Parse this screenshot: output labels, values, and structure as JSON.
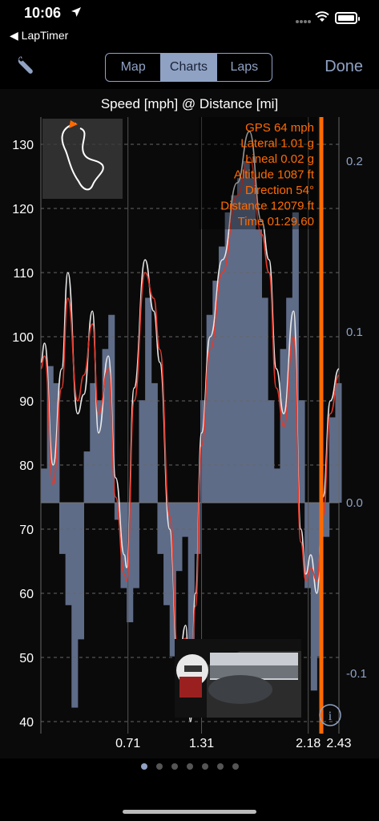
{
  "status_bar": {
    "time": "10:06"
  },
  "nav": {
    "back_label": "◀ LapTimer",
    "tabs": [
      {
        "label": "Map",
        "active": false
      },
      {
        "label": "Charts",
        "active": true
      },
      {
        "label": "Laps",
        "active": false
      }
    ],
    "done_label": "Done"
  },
  "chart": {
    "title": "Speed [mph] @ Distance [mi]",
    "info_lines": [
      "GPS 64 mph",
      "Lateral 1.01 g",
      "Lineal 0.02 g",
      "Altitude 1087 ft",
      "Direction 54°",
      "Distance 12079 ft",
      "Time 01:29.60"
    ]
  },
  "colors": {
    "accent": "#8fa2c4",
    "orange": "#ff6a00",
    "red_line": "#e5392b",
    "white_line": "#e8e8e8",
    "bars": "#5f6c88"
  },
  "chart_data": {
    "type": "line",
    "title": "Speed [mph] @ Distance [mi]",
    "x_ticks": [
      "0.71",
      "1.31",
      "2.18",
      "2.43"
    ],
    "y_ticks_left": [
      40,
      50,
      60,
      70,
      80,
      90,
      100,
      110,
      120,
      130
    ],
    "y_ticks_right": [
      "-0.1",
      "0.0",
      "0.1",
      "0.2"
    ],
    "ylim_left": [
      40,
      130
    ],
    "ylim_right": [
      -0.13,
      0.2
    ],
    "series": [
      {
        "color": "#e8e8e8",
        "x": [
          0.0,
          0.03,
          0.1,
          0.17,
          0.22,
          0.3,
          0.35,
          0.42,
          0.47,
          0.55,
          0.61,
          0.68,
          0.7,
          0.76,
          0.85,
          0.92,
          0.97,
          1.05,
          1.12,
          1.18,
          1.22,
          1.26,
          1.31,
          1.38,
          1.48,
          1.6,
          1.7,
          1.8,
          1.86,
          1.92,
          1.98,
          2.06,
          2.12,
          2.16,
          2.2,
          2.25,
          2.3,
          2.36,
          2.43
        ],
        "y": [
          96,
          99,
          80,
          95,
          110,
          88,
          91,
          104,
          85,
          97,
          78,
          66,
          64,
          92,
          112,
          104,
          96,
          70,
          48,
          55,
          40,
          60,
          85,
          100,
          112,
          124,
          132,
          118,
          112,
          95,
          88,
          104,
          70,
          63,
          66,
          60,
          75,
          90,
          95
        ]
      },
      {
        "color": "#e5392b",
        "x": [
          0.0,
          0.03,
          0.1,
          0.17,
          0.22,
          0.3,
          0.35,
          0.42,
          0.47,
          0.55,
          0.61,
          0.68,
          0.7,
          0.76,
          0.85,
          0.92,
          0.97,
          1.05,
          1.12,
          1.18,
          1.22,
          1.26,
          1.31,
          1.38,
          1.48,
          1.6,
          1.7,
          1.8,
          1.86,
          1.92,
          1.98,
          2.06,
          2.12,
          2.16,
          2.2,
          2.25,
          2.3,
          2.36,
          2.43
        ],
        "y": [
          95,
          97,
          77,
          92,
          106,
          90,
          94,
          102,
          88,
          95,
          75,
          63,
          62,
          90,
          110,
          106,
          98,
          72,
          50,
          53,
          42,
          58,
          83,
          98,
          110,
          122,
          128,
          116,
          110,
          92,
          86,
          100,
          68,
          62,
          64,
          62,
          72,
          88,
          94
        ]
      }
    ],
    "bars": {
      "x": [
        0.0,
        0.05,
        0.1,
        0.15,
        0.2,
        0.25,
        0.3,
        0.35,
        0.4,
        0.45,
        0.5,
        0.55,
        0.6,
        0.65,
        0.7,
        0.75,
        0.8,
        0.85,
        0.9,
        0.95,
        1.0,
        1.05,
        1.1,
        1.15,
        1.2,
        1.25,
        1.3,
        1.35,
        1.4,
        1.45,
        1.5,
        1.55,
        1.6,
        1.65,
        1.7,
        1.75,
        1.8,
        1.85,
        1.9,
        1.95,
        2.0,
        2.05,
        2.1,
        2.15,
        2.2,
        2.25,
        2.3,
        2.35,
        2.4
      ],
      "y": [
        0.02,
        0.08,
        0.07,
        -0.03,
        -0.06,
        -0.12,
        -0.08,
        0.03,
        0.07,
        0.06,
        0.09,
        0.11,
        -0.01,
        -0.05,
        -0.07,
        -0.05,
        0.06,
        0.12,
        0.07,
        -0.03,
        -0.06,
        -0.09,
        -0.04,
        -0.02,
        -0.11,
        -0.03,
        0.06,
        0.11,
        0.13,
        0.15,
        0.17,
        0.18,
        0.19,
        0.2,
        0.19,
        0.16,
        0.12,
        0.06,
        0.02,
        0.09,
        0.12,
        0.17,
        0.06,
        -0.05,
        -0.11,
        -0.09,
        -0.02,
        0.05,
        0.07
      ]
    }
  }
}
